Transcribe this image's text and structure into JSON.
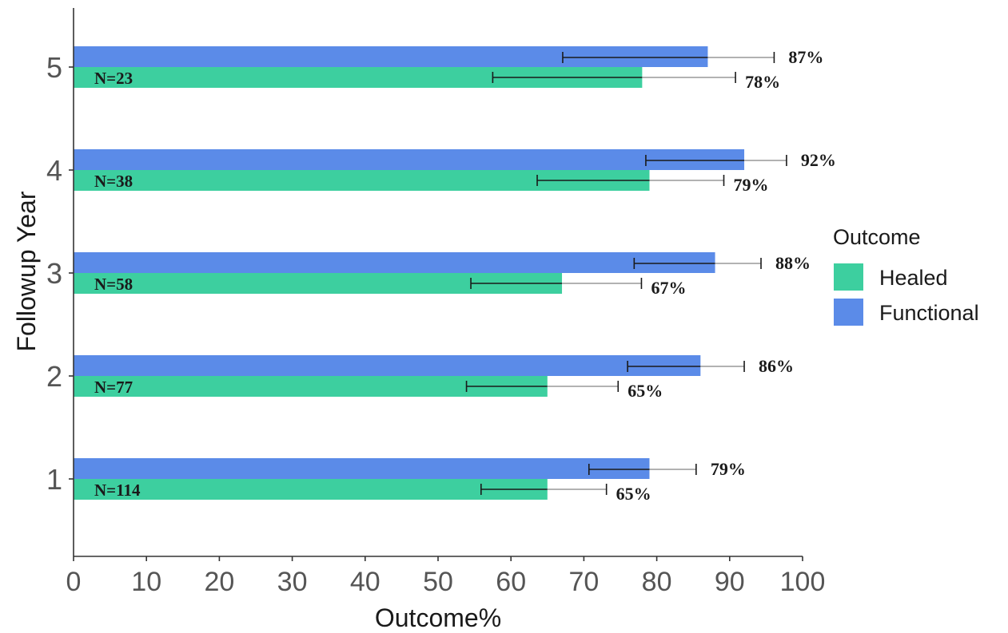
{
  "chart_data": {
    "type": "bar",
    "orientation": "horizontal",
    "title": "",
    "xlabel": "Outcome%",
    "ylabel": "Followup Year",
    "xlim": [
      0,
      100
    ],
    "x_ticks": [
      "0",
      "10",
      "20",
      "30",
      "40",
      "50",
      "60",
      "70",
      "80",
      "90",
      "100"
    ],
    "categories": [
      "1",
      "2",
      "3",
      "4",
      "5"
    ],
    "n_labels": [
      "N=114",
      "N=77",
      "N=58",
      "N=38",
      "N=23"
    ],
    "series": [
      {
        "name": "Healed",
        "color": "#3dcf9f",
        "values": [
          65,
          65,
          67,
          79,
          78
        ],
        "labels": [
          "65%",
          "65%",
          "67%",
          "79%",
          "78%"
        ],
        "error_low": [
          55.9,
          53.9,
          54.5,
          63.6,
          57.5
        ],
        "error_high": [
          73.1,
          74.7,
          77.9,
          89.2,
          90.8
        ]
      },
      {
        "name": "Functional",
        "color": "#5b8be8",
        "values": [
          79,
          86,
          88,
          92,
          87
        ],
        "labels": [
          "79%",
          "86%",
          "88%",
          "92%",
          "87%"
        ],
        "error_low": [
          70.7,
          76.0,
          76.9,
          78.5,
          67.1
        ],
        "error_high": [
          85.4,
          92.0,
          94.3,
          97.8,
          96.1
        ]
      }
    ],
    "legend": {
      "title": "Outcome",
      "position": "right"
    },
    "grid": false
  }
}
